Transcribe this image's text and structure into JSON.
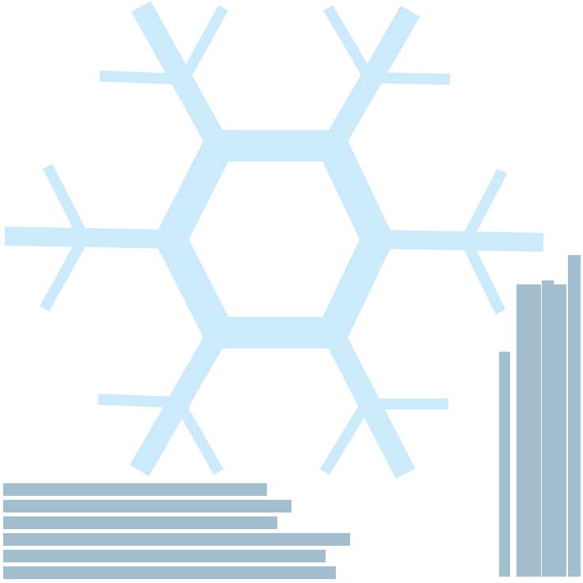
{
  "colors": {
    "background": "#ffffff",
    "snowflake": "#cdeafc",
    "bars": "#a3bfcf"
  },
  "decoration": {
    "snowflake_icon": "snowflake-icon",
    "arms": 6
  },
  "horizontal_bars": {
    "count": 6,
    "relative_lengths": [
      0.76,
      0.83,
      0.79,
      1.0,
      0.93,
      0.96
    ]
  },
  "vertical_bars": {
    "count": 6,
    "relative_heights": [
      0.7,
      0.91,
      0.91,
      0.92,
      0.91,
      1.0
    ]
  }
}
